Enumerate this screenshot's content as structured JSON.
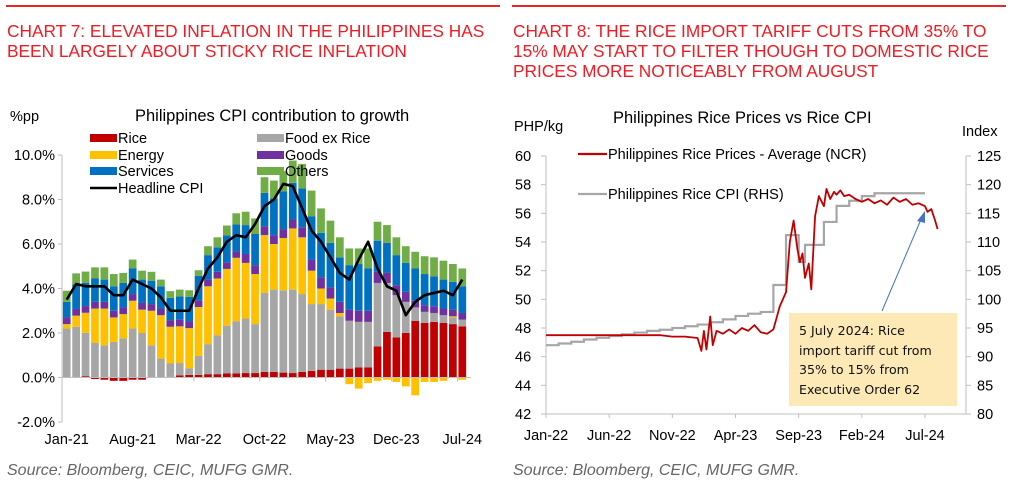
{
  "left_panel": {
    "headline_line1": "CHART 7: ELEVATED INFLATION IN THE PHILIPPINES HAS",
    "headline_line2": "BEEN LARGELY ABOUT STICKY RICE INFLATION",
    "source": "Source: Bloomberg, CEIC, MUFG GMR."
  },
  "right_panel": {
    "headline_line1": "CHART 8: THE RICE IMPORT TARIFF CUTS FROM 35% TO",
    "headline_line2": "15% MAY START TO FILTER THOUGH TO DOMESTIC RICE",
    "headline_line3": "PRICES MORE NOTICEABLY FROM AUGUST",
    "source": "Source: Bloomberg, CEIC, MUFG GMR.",
    "annotation_line1": "5 July 2024: Rice",
    "annotation_line2": "import tariff cut from",
    "annotation_line3": "35% to 15% from",
    "annotation_line4": "Executive Order 62"
  },
  "colors": {
    "headline": "#ee1c24",
    "Rice": "#c00000",
    "Food ex Rice": "#a6a6a6",
    "Energy": "#ffc000",
    "Goods": "#7030a0",
    "Services": "#0070c0",
    "Others": "#70ad47",
    "Headline CPI": "#000000",
    "rice_price": "#c00000",
    "rice_cpi": "#a6a6a6",
    "annotation_bg": "#fde9b6",
    "arrow": "#4472c4"
  },
  "chart_data": [
    {
      "type": "bar",
      "stacked": true,
      "title": "Philippines CPI contribution to growth",
      "ylabel": "%pp",
      "xlabel": "",
      "ylim": [
        -2.0,
        10.0
      ],
      "yticks": [
        "-2.0%",
        "0.0%",
        "2.0%",
        "4.0%",
        "6.0%",
        "8.0%",
        "10.0%"
      ],
      "ytick_values": [
        -2,
        0,
        2,
        4,
        6,
        8,
        10
      ],
      "xtick_labels": [
        "Jan-21",
        "Aug-21",
        "Mar-22",
        "Oct-22",
        "May-23",
        "Dec-23",
        "Jul-24"
      ],
      "xtick_indices": [
        0,
        7,
        14,
        21,
        28,
        35,
        42
      ],
      "legend": [
        "Rice",
        "Food ex Rice",
        "Energy",
        "Goods",
        "Services",
        "Others",
        "Headline CPI"
      ],
      "legend_position": "top-left",
      "categories": [
        "Jan-21",
        "Feb-21",
        "Mar-21",
        "Apr-21",
        "May-21",
        "Jun-21",
        "Jul-21",
        "Aug-21",
        "Sep-21",
        "Oct-21",
        "Nov-21",
        "Dec-21",
        "Jan-22",
        "Feb-22",
        "Mar-22",
        "Apr-22",
        "May-22",
        "Jun-22",
        "Jul-22",
        "Aug-22",
        "Sep-22",
        "Oct-22",
        "Nov-22",
        "Dec-22",
        "Jan-23",
        "Feb-23",
        "Mar-23",
        "Apr-23",
        "May-23",
        "Jun-23",
        "Jul-23",
        "Aug-23",
        "Sep-23",
        "Oct-23",
        "Nov-23",
        "Dec-23",
        "Jan-24",
        "Feb-24",
        "Mar-24",
        "Apr-24",
        "May-24",
        "Jun-24",
        "Jul-24"
      ],
      "series": [
        {
          "name": "Rice",
          "values": [
            0.0,
            0.03,
            0.06,
            -0.07,
            -0.1,
            -0.15,
            -0.15,
            -0.1,
            -0.1,
            0.0,
            0.0,
            0.03,
            0.1,
            0.12,
            0.12,
            0.15,
            0.15,
            0.18,
            0.18,
            0.2,
            0.2,
            0.25,
            0.25,
            0.22,
            0.2,
            0.25,
            0.3,
            0.35,
            0.35,
            0.4,
            0.4,
            0.45,
            0.45,
            1.4,
            2.05,
            1.8,
            2.0,
            2.55,
            2.45,
            2.5,
            2.45,
            2.4,
            2.3
          ]
        },
        {
          "name": "Food ex Rice",
          "values": [
            2.2,
            2.25,
            1.95,
            1.55,
            1.45,
            1.6,
            1.75,
            2.2,
            2.0,
            1.45,
            0.85,
            0.6,
            0.55,
            0.3,
            0.85,
            1.35,
            1.75,
            2.15,
            2.35,
            2.45,
            2.2,
            3.55,
            3.7,
            3.7,
            3.75,
            3.5,
            3.0,
            2.95,
            2.7,
            2.35,
            2.15,
            2.05,
            2.05,
            2.85,
            2.2,
            1.9,
            1.4,
            0.6,
            0.5,
            0.4,
            0.35,
            0.3,
            0.3
          ]
        },
        {
          "name": "Energy",
          "values": [
            0.2,
            0.5,
            0.9,
            1.55,
            1.65,
            1.1,
            1.1,
            1.25,
            1.05,
            1.55,
            1.95,
            1.65,
            1.65,
            1.8,
            2.2,
            2.6,
            2.55,
            2.55,
            2.85,
            2.5,
            2.25,
            2.6,
            2.05,
            2.35,
            2.75,
            2.55,
            1.5,
            0.7,
            0.5,
            0.15,
            -0.3,
            -0.5,
            -0.25,
            -0.15,
            -0.1,
            -0.2,
            -0.4,
            -0.8,
            -0.2,
            -0.2,
            -0.15,
            0.05,
            -0.1
          ]
        },
        {
          "name": "Goods",
          "values": [
            0.3,
            0.3,
            0.3,
            0.3,
            0.3,
            0.3,
            0.3,
            0.3,
            0.3,
            0.3,
            0.3,
            0.3,
            0.3,
            0.3,
            0.3,
            0.3,
            0.3,
            0.3,
            0.3,
            0.4,
            0.4,
            0.4,
            0.4,
            0.4,
            0.4,
            0.45,
            0.5,
            0.5,
            0.5,
            0.5,
            0.5,
            0.5,
            0.5,
            0.5,
            0.45,
            0.45,
            0.45,
            0.3,
            0.3,
            0.3,
            0.3,
            0.3,
            0.3
          ]
        },
        {
          "name": "Services",
          "values": [
            0.7,
            1.1,
            1.05,
            1.05,
            1.0,
            1.1,
            1.1,
            1.15,
            1.05,
            1.05,
            1.0,
            1.0,
            1.05,
            1.1,
            1.1,
            1.1,
            1.1,
            1.2,
            1.2,
            1.3,
            1.4,
            1.5,
            1.65,
            1.7,
            1.65,
            1.75,
            1.95,
            2.0,
            2.0,
            2.0,
            2.0,
            2.1,
            1.9,
            1.4,
            1.35,
            1.35,
            1.3,
            1.45,
            1.4,
            1.35,
            1.3,
            1.25,
            1.2
          ]
        },
        {
          "name": "Others",
          "values": [
            0.5,
            0.5,
            0.5,
            0.5,
            0.55,
            0.55,
            0.45,
            0.4,
            0.4,
            0.4,
            0.3,
            0.3,
            0.3,
            0.3,
            0.25,
            0.4,
            0.45,
            0.45,
            0.5,
            0.6,
            0.7,
            0.7,
            0.8,
            0.9,
            1.0,
            1.1,
            1.15,
            1.1,
            1.0,
            0.9,
            0.75,
            0.7,
            0.9,
            0.85,
            0.8,
            0.8,
            0.75,
            0.75,
            0.8,
            0.85,
            0.85,
            0.8,
            0.8
          ]
        },
        {
          "name": "Headline CPI",
          "type": "line",
          "values": [
            3.5,
            4.2,
            4.1,
            4.1,
            4.1,
            3.7,
            3.7,
            4.4,
            4.2,
            4.0,
            3.6,
            3.0,
            3.0,
            3.0,
            4.0,
            4.9,
            5.4,
            6.1,
            6.4,
            6.3,
            6.9,
            7.7,
            8.0,
            8.7,
            8.6,
            7.6,
            6.6,
            6.1,
            5.4,
            4.7,
            4.4,
            5.3,
            6.1,
            4.9,
            4.1,
            3.9,
            2.8,
            3.4,
            3.7,
            3.8,
            3.9,
            3.7,
            4.4
          ]
        }
      ]
    },
    {
      "type": "line",
      "title": "Philippines Rice Prices vs Rice CPI",
      "ylabel": "PHP/kg",
      "ylabel_right": "Index",
      "ylim": [
        42,
        60
      ],
      "ylim_right": [
        80,
        125
      ],
      "yticks": [
        "42",
        "44",
        "46",
        "48",
        "50",
        "52",
        "54",
        "56",
        "58",
        "60"
      ],
      "yticks_right": [
        "80",
        "85",
        "90",
        "95",
        "100",
        "105",
        "110",
        "115",
        "120",
        "125"
      ],
      "xtick_labels": [
        "Jan-22",
        "Jun-22",
        "Nov-22",
        "Apr-23",
        "Sep-23",
        "Feb-24",
        "Jul-24"
      ],
      "x_range_months": [
        0,
        31
      ],
      "legend_position": "top-left",
      "annotation": {
        "text": "5 July 2024: Rice import tariff cut from 35% to 15% from Executive Order 62",
        "points_to": "Jul-24"
      },
      "series": [
        {
          "name": "Philippines Rice Prices - Average (NCR)",
          "axis": "left",
          "x_months": [
            0,
            3,
            6,
            9,
            10,
            11,
            12,
            12.3,
            12.5,
            12.7,
            13,
            13.2,
            13.5,
            14,
            14.5,
            15,
            15.5,
            16,
            16.5,
            17,
            17.5,
            18,
            18.5,
            19,
            19.3,
            19.6,
            19.9,
            20.1,
            20.3,
            20.5,
            20.8,
            21,
            21.3,
            21.6,
            22,
            22.2,
            22.5,
            22.8,
            23,
            23.3,
            23.6,
            24,
            24.5,
            25,
            25.5,
            26,
            26.5,
            27,
            27.5,
            28,
            28.5,
            29,
            29.5,
            30,
            30.2,
            30.5,
            30.8,
            31
          ],
          "values": [
            47.5,
            47.5,
            47.5,
            47.5,
            47.4,
            47.4,
            47.3,
            46.4,
            47.8,
            46.5,
            48.8,
            46.8,
            47.8,
            47.6,
            47.9,
            47.6,
            48.0,
            47.8,
            48.2,
            47.7,
            47.6,
            47.9,
            49.5,
            50.5,
            54.0,
            55.5,
            53.5,
            52.6,
            53.2,
            51.5,
            52.5,
            50.7,
            55.8,
            57.2,
            56.5,
            57.7,
            57.0,
            57.5,
            57.3,
            57.6,
            57.2,
            57.3,
            57.0,
            56.8,
            57.0,
            56.7,
            56.9,
            56.6,
            57.1,
            56.8,
            57.0,
            56.6,
            56.7,
            56.5,
            56.1,
            56.3,
            55.5,
            54.9
          ]
        },
        {
          "name": "Philippines Rice CPI (RHS)",
          "axis": "right",
          "x_months": [
            0,
            1,
            2,
            3,
            4,
            5,
            6,
            7,
            8,
            9,
            10,
            11,
            12,
            13,
            14,
            15,
            16,
            17,
            18,
            19,
            20,
            20.5,
            21,
            22,
            23,
            24,
            25,
            26,
            27,
            28,
            29,
            30
          ],
          "values": [
            92.0,
            92.3,
            92.6,
            93.0,
            93.3,
            93.6,
            93.9,
            94.2,
            94.5,
            94.7,
            95.0,
            95.3,
            95.6,
            96.0,
            96.5,
            97.1,
            97.5,
            97.8,
            102.5,
            111.2,
            106.5,
            109.5,
            109.5,
            113.5,
            116.3,
            117.2,
            118.0,
            118.5,
            118.5,
            118.5,
            118.5,
            118.5
          ]
        }
      ]
    }
  ]
}
